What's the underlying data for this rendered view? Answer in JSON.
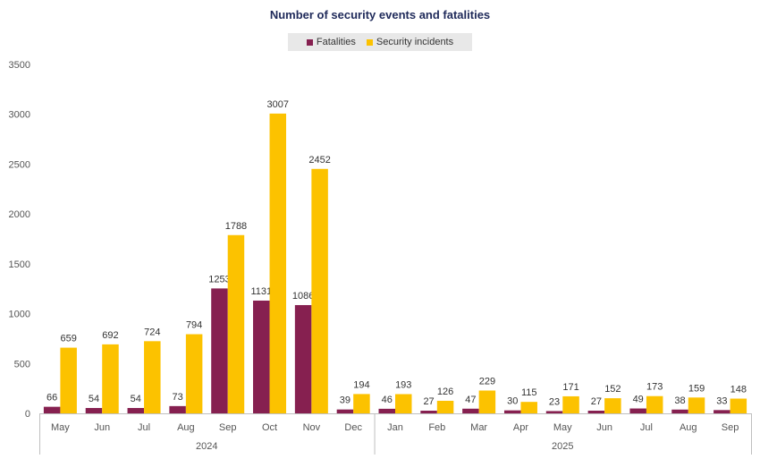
{
  "chart_data": {
    "type": "bar",
    "title": "Number of security events and fatalities",
    "xlabel": "",
    "ylabel": "",
    "ylim": [
      0,
      3500
    ],
    "yticks": [
      0,
      500,
      1000,
      1500,
      2000,
      2500,
      3000,
      3500
    ],
    "categories": [
      "May",
      "Jun",
      "Jul",
      "Aug",
      "Sep",
      "Oct",
      "Nov",
      "Dec",
      "Jan",
      "Feb",
      "Mar",
      "Apr",
      "May",
      "Jun",
      "Jul",
      "Aug",
      "Sep"
    ],
    "year_groups": [
      {
        "label": "2024",
        "start": 0,
        "end": 7
      },
      {
        "label": "2025",
        "start": 8,
        "end": 16
      }
    ],
    "series": [
      {
        "name": "Fatalities",
        "color": "#862050",
        "values": [
          66,
          54,
          54,
          73,
          1253,
          1131,
          1086,
          39,
          46,
          27,
          47,
          30,
          23,
          27,
          49,
          38,
          33
        ]
      },
      {
        "name": "Security incidents",
        "color": "#fcc200",
        "values": [
          659,
          692,
          724,
          794,
          1788,
          3007,
          2452,
          194,
          193,
          126,
          229,
          115,
          171,
          152,
          173,
          159,
          148
        ]
      }
    ],
    "legend_position": "top-center",
    "grid": false
  }
}
